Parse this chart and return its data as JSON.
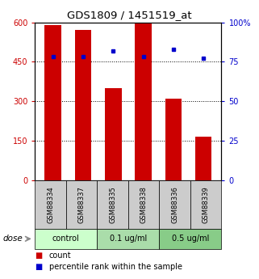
{
  "title": "GDS1809 / 1451519_at",
  "samples": [
    "GSM88334",
    "GSM88337",
    "GSM88335",
    "GSM88338",
    "GSM88336",
    "GSM88339"
  ],
  "counts": [
    590,
    570,
    350,
    600,
    310,
    165
  ],
  "percentile_ranks": [
    78,
    78,
    82,
    78,
    83,
    77
  ],
  "groups": [
    {
      "label": "control",
      "indices": [
        0,
        1
      ],
      "color": "#ccffcc"
    },
    {
      "label": "0.1 ug/ml",
      "indices": [
        2,
        3
      ],
      "color": "#aaddaa"
    },
    {
      "label": "0.5 ug/ml",
      "indices": [
        4,
        5
      ],
      "color": "#88cc88"
    }
  ],
  "bar_color": "#cc0000",
  "dot_color": "#0000cc",
  "left_ylim": [
    0,
    600
  ],
  "left_yticks": [
    0,
    150,
    300,
    450,
    600
  ],
  "right_ylim": [
    0,
    100
  ],
  "right_yticks": [
    0,
    25,
    50,
    75,
    100
  ],
  "right_yticklabels": [
    "0",
    "25",
    "50",
    "75",
    "100%"
  ],
  "grid_values": [
    150,
    300,
    450
  ],
  "background_color": "#ffffff",
  "label_area_color": "#cccccc",
  "dose_label": "dose",
  "legend_count_label": "count",
  "legend_pct_label": "percentile rank within the sample",
  "group_colors": [
    "#ccffcc",
    "#aaddaa",
    "#88cc88"
  ]
}
